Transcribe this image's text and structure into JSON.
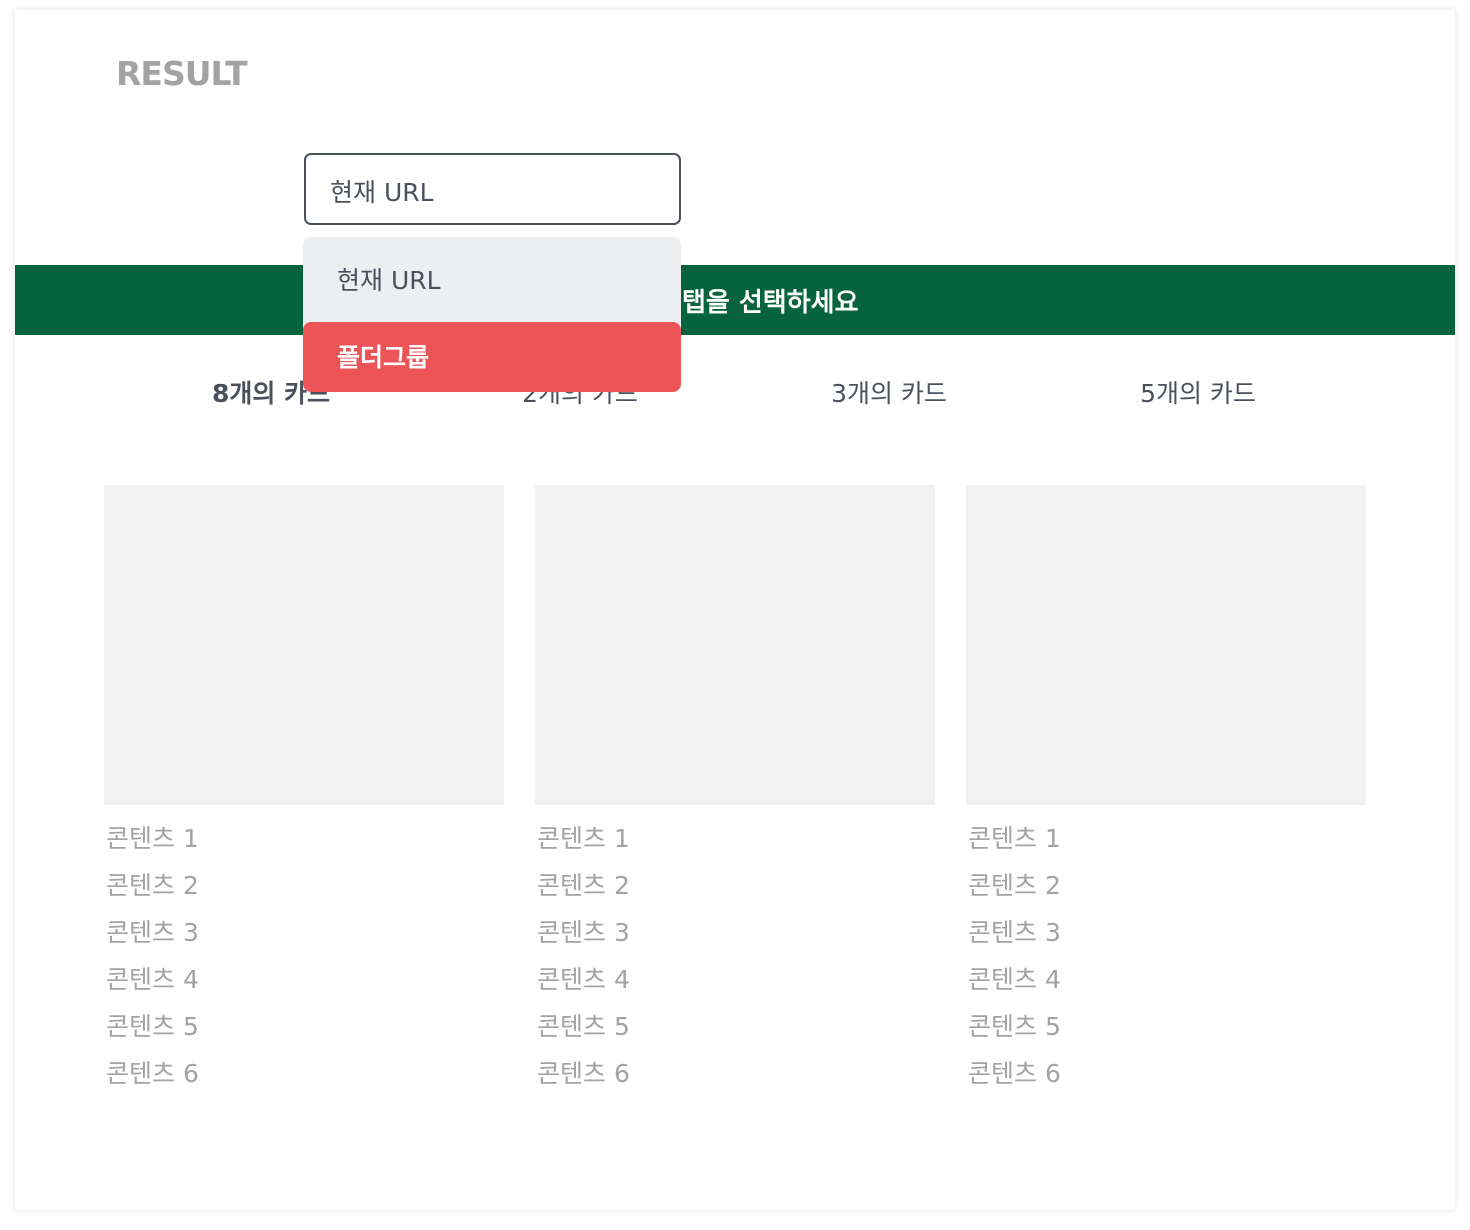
{
  "header": {
    "title": "RESULT"
  },
  "select": {
    "value": "현재 URL",
    "options": [
      "현재 URL",
      "폴더그룹"
    ],
    "highlighted": "폴더그룹"
  },
  "banner": {
    "text": "탭을 선택하세요",
    "color": "#06633d"
  },
  "tabs": [
    {
      "label": "8개의 카드",
      "active": true
    },
    {
      "label": "2개의 카드"
    },
    {
      "label": "3개의 카드"
    },
    {
      "label": "5개의 카드"
    }
  ],
  "cards": [
    {
      "items": [
        "콘텐츠 1",
        "콘텐츠 2",
        "콘텐츠 3",
        "콘텐츠 4",
        "콘텐츠 5",
        "콘텐츠 6"
      ]
    },
    {
      "items": [
        "콘텐츠 1",
        "콘텐츠 2",
        "콘텐츠 3",
        "콘텐츠 4",
        "콘텐츠 5",
        "콘텐츠 6"
      ]
    },
    {
      "items": [
        "콘텐츠 1",
        "콘텐츠 2",
        "콘텐츠 3",
        "콘텐츠 4",
        "콘텐츠 5",
        "콘텐츠 6"
      ]
    }
  ],
  "colors": {
    "highlight": "#ec5457",
    "text": "#4a515c"
  }
}
